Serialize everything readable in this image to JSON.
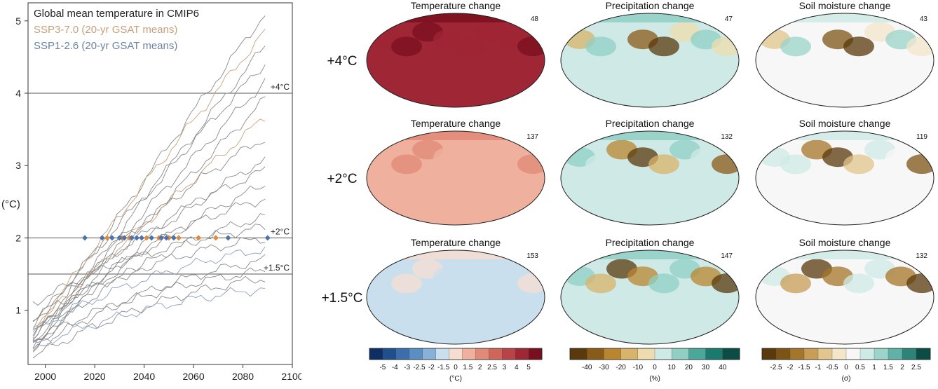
{
  "chart_data": [
    {
      "type": "line",
      "title": "Global mean temperature in CMIP6",
      "legend": [
        {
          "name": "SSP3-7.0 (20-yr GSAT means)",
          "color": "#c8a07a"
        },
        {
          "name": "SSP1-2.6 (20-yr GSAT means)",
          "color": "#6d83a3"
        }
      ],
      "legend_placement": "top-left",
      "ylabel": "(°C)",
      "xlim": [
        1993,
        2100
      ],
      "ylim": [
        0.25,
        5.25
      ],
      "x_ticks": [
        "2000",
        "2020",
        "2040",
        "2060",
        "2080",
        "2100"
      ],
      "y_ticks": [
        "1",
        "2",
        "3",
        "4",
        "5"
      ],
      "reference_lines": [
        {
          "value": 4,
          "label": "+4°C"
        },
        {
          "value": 2,
          "label": "+2°C"
        },
        {
          "value": 1.5,
          "label": "+1.5°C"
        }
      ],
      "crossing_years_2C": {
        "SSP1-2.6": [
          2016,
          2023,
          2027,
          2030,
          2032,
          2035,
          2037,
          2039,
          2043,
          2047,
          2049,
          2052,
          2074,
          2090
        ],
        "SSP3-7.0": [
          2025,
          2031,
          2034,
          2041,
          2046,
          2050,
          2054,
          2062,
          2069
        ]
      },
      "series_note": "Model ensemble lines span 1995-2090",
      "series": [
        {
          "name": "",
          "x": [
            1995,
            2090
          ],
          "y": [
            0.55,
            5.15
          ]
        },
        {
          "name": "",
          "x": [
            1995,
            2090
          ],
          "y": [
            0.7,
            4.9
          ]
        },
        {
          "name": "",
          "x": [
            1995,
            2090
          ],
          "y": [
            0.45,
            4.7
          ]
        },
        {
          "name": "",
          "x": [
            1995,
            2090
          ],
          "y": [
            0.8,
            4.45
          ]
        },
        {
          "name": "",
          "x": [
            1995,
            2090
          ],
          "y": [
            0.6,
            4.2
          ]
        },
        {
          "name": "",
          "x": [
            1995,
            2090
          ],
          "y": [
            0.5,
            3.95
          ]
        },
        {
          "name": "",
          "x": [
            1995,
            2090
          ],
          "y": [
            0.75,
            3.7
          ]
        },
        {
          "name": "",
          "x": [
            1995,
            2090
          ],
          "y": [
            0.6,
            3.4
          ]
        },
        {
          "name": "",
          "x": [
            1995,
            2090
          ],
          "y": [
            0.4,
            3.1
          ]
        },
        {
          "name": "",
          "x": [
            1995,
            2090
          ],
          "y": [
            0.85,
            2.95
          ]
        },
        {
          "name": "",
          "x": [
            1995,
            2090
          ],
          "y": [
            0.55,
            2.75
          ]
        },
        {
          "name": "",
          "x": [
            1995,
            2090
          ],
          "y": [
            0.65,
            2.55
          ]
        },
        {
          "name": "",
          "x": [
            1995,
            2090
          ],
          "y": [
            0.5,
            2.3
          ]
        },
        {
          "name": "",
          "x": [
            1995,
            2090
          ],
          "y": [
            1.1,
            2.15
          ]
        },
        {
          "name": "",
          "x": [
            1995,
            2090
          ],
          "y": [
            0.9,
            2.0
          ]
        },
        {
          "name": "",
          "x": [
            1995,
            2090
          ],
          "y": [
            0.7,
            1.85
          ]
        },
        {
          "name": "",
          "x": [
            1995,
            2090
          ],
          "y": [
            0.45,
            1.7
          ]
        },
        {
          "name": "",
          "x": [
            1995,
            2090
          ],
          "y": [
            0.6,
            1.55
          ]
        },
        {
          "name": "",
          "x": [
            1995,
            2090
          ],
          "y": [
            0.35,
            1.45
          ]
        },
        {
          "name": "",
          "x": [
            1995,
            2090
          ],
          "y": [
            0.5,
            1.3
          ]
        }
      ]
    },
    {
      "type": "heatmap",
      "rows": [
        {
          "label": "+4°C",
          "counts": [
            "48",
            "47",
            "43"
          ]
        },
        {
          "label": "+2°C",
          "counts": [
            "137",
            "132",
            "119"
          ]
        },
        {
          "label": "+1.5°C",
          "counts": [
            "153",
            "147",
            "132"
          ]
        }
      ],
      "columns": [
        {
          "title": "Temperature change",
          "unit": "(°C)",
          "tick_labels": [
            "-5",
            "-4",
            "-3",
            "-2.5",
            "-2",
            "-1.5",
            "0",
            "1.5",
            "2",
            "2.5",
            "3",
            "4",
            "5"
          ],
          "colors": [
            "#0d2f66",
            "#1f4f8c",
            "#3b6fab",
            "#5a8ec4",
            "#86b1d9",
            "#c9dfee",
            "#f7ddd0",
            "#efb19d",
            "#e28a78",
            "#d0665a",
            "#b94346",
            "#9f2634",
            "#7a0f1f"
          ],
          "row_levels": [
            0.95,
            0.6,
            0.45
          ]
        },
        {
          "title": "Precipitation change",
          "unit": "(%)",
          "tick_labels": [
            "-40",
            "-30",
            "-20",
            "-10",
            "0",
            "10",
            "20",
            "30",
            "40"
          ],
          "colors": [
            "#5a3a0c",
            "#8a5a17",
            "#b9852f",
            "#d8b36a",
            "#efdcae",
            "#cfeae6",
            "#8fcfc4",
            "#4aa89a",
            "#1b7a6e",
            "#0b4d44"
          ],
          "row_levels": [
            0.75,
            0.62,
            0.55
          ]
        },
        {
          "title": "Soil moisture change",
          "unit": "(σ)",
          "tick_labels": [
            "-2.5",
            "-2",
            "-1.5",
            "-1",
            "-0.5",
            "0",
            "0.5",
            "1",
            "1.5",
            "2",
            "2.5"
          ],
          "colors": [
            "#5a3a0c",
            "#7d5416",
            "#a5752a",
            "#c89d56",
            "#e2c68e",
            "#f3e6c9",
            "#f7f7f7",
            "#cfeae6",
            "#9bd4ca",
            "#5fb3a6",
            "#2a8478",
            "#0b4d44"
          ],
          "row_levels": [
            0.7,
            0.55,
            0.52
          ]
        }
      ]
    }
  ]
}
